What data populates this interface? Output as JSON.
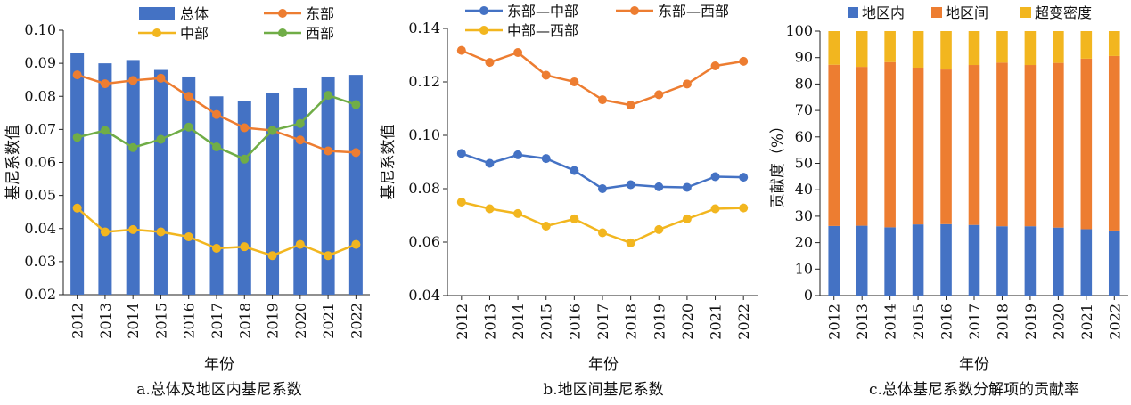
{
  "chart_data": [
    {
      "type": "bar+line",
      "caption": "a.总体及地区内基尼系数",
      "xlabel": "年份",
      "ylabel": "基尼系数值",
      "ylim": [
        0.02,
        0.1
      ],
      "yticks": [
        "0.02",
        "0.03",
        "0.04",
        "0.05",
        "0.06",
        "0.07",
        "0.08",
        "0.09",
        "0.10"
      ],
      "ytick_values": [
        0.02,
        0.03,
        0.04,
        0.05,
        0.06,
        0.07,
        0.08,
        0.09,
        0.1
      ],
      "categories": [
        "2012",
        "2013",
        "2014",
        "2015",
        "2016",
        "2017",
        "2018",
        "2019",
        "2020",
        "2021",
        "2022"
      ],
      "legend_placement": "top",
      "series": [
        {
          "name": "总体",
          "kind": "bar",
          "color": "#4472C4",
          "values": [
            0.093,
            0.09,
            0.091,
            0.088,
            0.086,
            0.08,
            0.0785,
            0.081,
            0.0825,
            0.086,
            0.0865
          ]
        },
        {
          "name": "东部",
          "kind": "line",
          "color": "#ED7D31",
          "values": [
            0.0865,
            0.0838,
            0.0848,
            0.0855,
            0.08,
            0.0745,
            0.0705,
            0.0697,
            0.0668,
            0.0635,
            0.063
          ]
        },
        {
          "name": "中部",
          "kind": "line",
          "color": "#F2B61F",
          "values": [
            0.0462,
            0.039,
            0.0397,
            0.039,
            0.0375,
            0.034,
            0.0345,
            0.0318,
            0.0352,
            0.0318,
            0.0352
          ]
        },
        {
          "name": "西部",
          "kind": "line",
          "color": "#70AD47",
          "values": [
            0.0676,
            0.0697,
            0.0645,
            0.067,
            0.0707,
            0.0647,
            0.061,
            0.0697,
            0.0718,
            0.0803,
            0.0775
          ]
        }
      ]
    },
    {
      "type": "line",
      "caption": "b.地区间基尼系数",
      "xlabel": "年份",
      "ylabel": "基尼系数值",
      "ylim": [
        0.04,
        0.14
      ],
      "yticks": [
        "0.04",
        "0.06",
        "0.08",
        "0.10",
        "0.12",
        "0.14"
      ],
      "ytick_values": [
        0.04,
        0.06,
        0.08,
        0.1,
        0.12,
        0.14
      ],
      "categories": [
        "2012",
        "2013",
        "2014",
        "2015",
        "2016",
        "2017",
        "2018",
        "2019",
        "2020",
        "2021",
        "2022"
      ],
      "legend_placement": "top",
      "series": [
        {
          "name": "东部—中部",
          "color": "#4472C4",
          "values": [
            0.0932,
            0.0895,
            0.0927,
            0.0913,
            0.0868,
            0.08,
            0.0815,
            0.0807,
            0.0805,
            0.0845,
            0.0843
          ]
        },
        {
          "name": "东部—西部",
          "color": "#ED7D31",
          "values": [
            0.1318,
            0.1273,
            0.131,
            0.1225,
            0.12,
            0.1133,
            0.1113,
            0.1152,
            0.1192,
            0.126,
            0.1277
          ]
        },
        {
          "name": "中部—西部",
          "color": "#F2B61F",
          "values": [
            0.075,
            0.0725,
            0.0707,
            0.066,
            0.0687,
            0.0635,
            0.0597,
            0.0647,
            0.0687,
            0.0725,
            0.0728
          ]
        }
      ]
    },
    {
      "type": "stacked-bar",
      "caption": "c.总体基尼系数分解项的贡献率",
      "xlabel": "年份",
      "ylabel": "贡献度（%）",
      "ylim": [
        0,
        100
      ],
      "yticks": [
        "0",
        "10",
        "20",
        "30",
        "40",
        "50",
        "60",
        "70",
        "80",
        "90",
        "100"
      ],
      "ytick_values": [
        0,
        10,
        20,
        30,
        40,
        50,
        60,
        70,
        80,
        90,
        100
      ],
      "categories": [
        "2012",
        "2013",
        "2014",
        "2015",
        "2016",
        "2017",
        "2018",
        "2019",
        "2020",
        "2021",
        "2022"
      ],
      "legend_placement": "top",
      "series": [
        {
          "name": "地区内",
          "color": "#4472C4",
          "values": [
            26.3,
            26.4,
            25.8,
            26.9,
            27.0,
            26.7,
            26.2,
            26.2,
            25.7,
            25.1,
            24.6
          ]
        },
        {
          "name": "地区间",
          "color": "#ED7D31",
          "values": [
            61.0,
            60.1,
            62.5,
            59.3,
            58.5,
            60.5,
            61.9,
            61.0,
            62.3,
            64.5,
            66.0
          ]
        },
        {
          "name": "超变密度",
          "color": "#F2B61F",
          "values": [
            12.7,
            13.5,
            11.7,
            13.8,
            14.5,
            12.8,
            11.9,
            12.8,
            12.0,
            10.4,
            9.4
          ]
        }
      ]
    }
  ]
}
